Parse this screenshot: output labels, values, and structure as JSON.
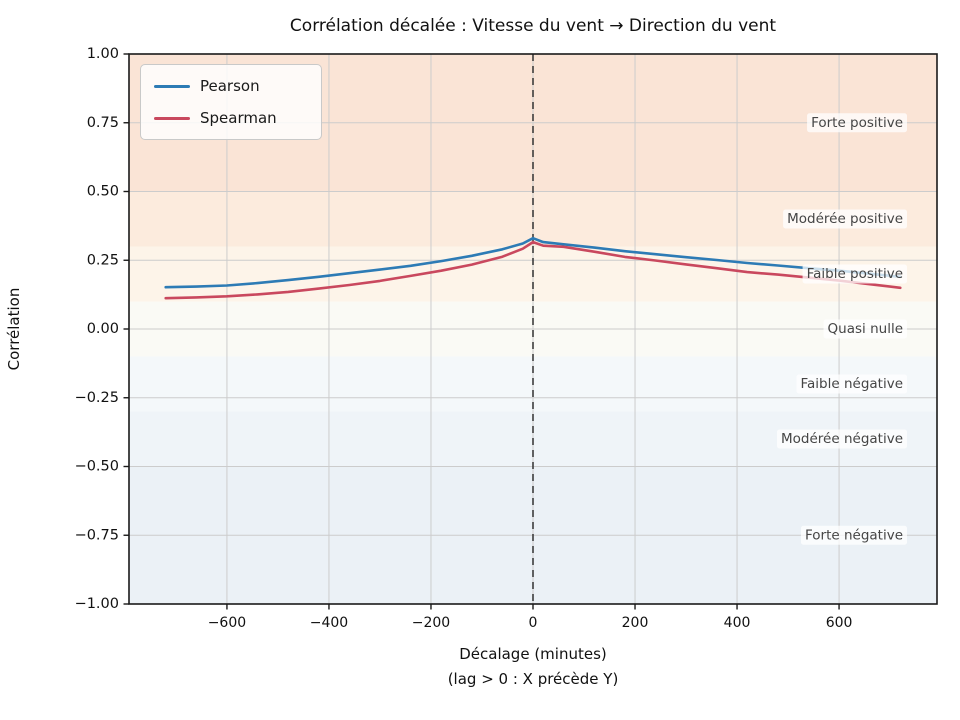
{
  "chart_data": {
    "type": "line",
    "title": "Corrélation décalée : Vitesse du vent → Direction du vent",
    "xlabel": "Décalage (minutes)",
    "xlabel_sub": "(lag > 0 : X précède Y)",
    "ylabel": "Corrélation",
    "xlim": [
      -792,
      792
    ],
    "ylim": [
      -1.0,
      1.0
    ],
    "grid": true,
    "legend_position": "upper left",
    "vline_x": 0,
    "xticks": [
      -600,
      -400,
      -200,
      0,
      200,
      400,
      600
    ],
    "xtick_labels": [
      "−600",
      "−400",
      "−200",
      "0",
      "200",
      "400",
      "600"
    ],
    "yticks": [
      1.0,
      0.75,
      0.5,
      0.25,
      0.0,
      -0.25,
      -0.5,
      -0.75,
      -1.0
    ],
    "ytick_labels": [
      "1.00",
      "0.75",
      "0.50",
      "0.25",
      "0.00",
      "−0.25",
      "−0.50",
      "−0.75",
      "−1.00"
    ],
    "x": [
      -720,
      -660,
      -600,
      -540,
      -480,
      -420,
      -360,
      -300,
      -240,
      -180,
      -120,
      -60,
      -20,
      0,
      20,
      60,
      120,
      180,
      240,
      300,
      360,
      420,
      480,
      540,
      600,
      660,
      720
    ],
    "series": [
      {
        "name": "Pearson",
        "color": "#2d7bb5",
        "values": [
          0.152,
          0.154,
          0.158,
          0.167,
          0.178,
          0.19,
          0.203,
          0.216,
          0.23,
          0.247,
          0.266,
          0.29,
          0.311,
          0.33,
          0.316,
          0.308,
          0.296,
          0.283,
          0.272,
          0.261,
          0.251,
          0.24,
          0.231,
          0.221,
          0.212,
          0.201,
          0.19
        ]
      },
      {
        "name": "Spearman",
        "color": "#c9485e",
        "values": [
          0.112,
          0.115,
          0.119,
          0.126,
          0.135,
          0.147,
          0.16,
          0.175,
          0.193,
          0.212,
          0.234,
          0.263,
          0.292,
          0.316,
          0.303,
          0.299,
          0.281,
          0.262,
          0.249,
          0.235,
          0.221,
          0.207,
          0.198,
          0.187,
          0.176,
          0.163,
          0.15
        ]
      }
    ],
    "bands": [
      {
        "label": "Forte positive",
        "from": 0.5,
        "to": 1.0,
        "label_y": 0.75,
        "color": "#fae4d6"
      },
      {
        "label": "Modérée positive",
        "from": 0.3,
        "to": 0.5,
        "label_y": 0.4,
        "color": "#fcebdd"
      },
      {
        "label": "Faible positive",
        "from": 0.1,
        "to": 0.3,
        "label_y": 0.2,
        "color": "#fdf4e9"
      },
      {
        "label": "Quasi nulle",
        "from": -0.1,
        "to": 0.1,
        "label_y": 0.0,
        "color": "#fafaf5"
      },
      {
        "label": "Faible négative",
        "from": -0.3,
        "to": -0.1,
        "label_y": -0.2,
        "color": "#f4f8fa"
      },
      {
        "label": "Modérée négative",
        "from": -0.5,
        "to": -0.3,
        "label_y": -0.4,
        "color": "#eff4f8"
      },
      {
        "label": "Forte négative",
        "from": -1.0,
        "to": -0.5,
        "label_y": -0.75,
        "color": "#ebf1f6"
      }
    ],
    "colors": {
      "grid": "#cccccc",
      "spine": "#1a1a1a",
      "vline": "#3c3c3c",
      "tick_text": "#111111",
      "band_label_text": "#454545"
    }
  }
}
